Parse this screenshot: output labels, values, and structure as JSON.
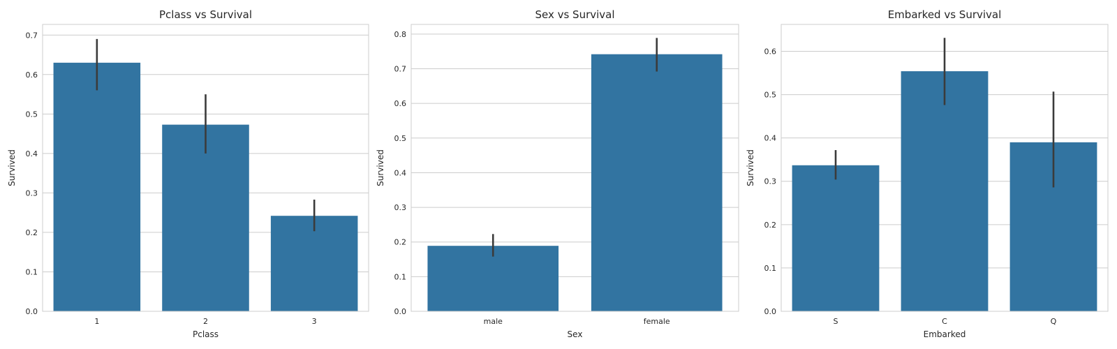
{
  "figure": {
    "bar_color": "#3274a1",
    "error_color": "#3b3b3b",
    "grid_color": "#cccccc"
  },
  "chart_data": [
    {
      "type": "bar",
      "title": "Pclass vs Survival",
      "xlabel": "Pclass",
      "ylabel": "Survived",
      "categories": [
        "1",
        "2",
        "3"
      ],
      "values": [
        0.63,
        0.473,
        0.242
      ],
      "ci_low": [
        0.56,
        0.4,
        0.203
      ],
      "ci_high": [
        0.69,
        0.55,
        0.283
      ],
      "ylim": [
        0,
        0.727
      ],
      "yticks": [
        0.0,
        0.1,
        0.2,
        0.3,
        0.4,
        0.5,
        0.6,
        0.7
      ],
      "ytick_labels": [
        "0.0",
        "0.1",
        "0.2",
        "0.3",
        "0.4",
        "0.5",
        "0.6",
        "0.7"
      ],
      "grid": true
    },
    {
      "type": "bar",
      "title": "Sex vs Survival",
      "xlabel": "Sex",
      "ylabel": "Survived",
      "categories": [
        "male",
        "female"
      ],
      "values": [
        0.189,
        0.742
      ],
      "ci_low": [
        0.158,
        0.692
      ],
      "ci_high": [
        0.223,
        0.789
      ],
      "ylim": [
        0,
        0.828
      ],
      "yticks": [
        0.0,
        0.1,
        0.2,
        0.3,
        0.4,
        0.5,
        0.6,
        0.7,
        0.8
      ],
      "ytick_labels": [
        "0.0",
        "0.1",
        "0.2",
        "0.3",
        "0.4",
        "0.5",
        "0.6",
        "0.7",
        "0.8"
      ],
      "grid": true
    },
    {
      "type": "bar",
      "title": "Embarked vs Survival",
      "xlabel": "Embarked",
      "ylabel": "Survived",
      "categories": [
        "S",
        "C",
        "Q"
      ],
      "values": [
        0.337,
        0.554,
        0.39
      ],
      "ci_low": [
        0.304,
        0.476,
        0.286
      ],
      "ci_high": [
        0.372,
        0.631,
        0.507
      ],
      "ylim": [
        0,
        0.662
      ],
      "yticks": [
        0.0,
        0.1,
        0.2,
        0.3,
        0.4,
        0.5,
        0.6
      ],
      "ytick_labels": [
        "0.0",
        "0.1",
        "0.2",
        "0.3",
        "0.4",
        "0.5",
        "0.6"
      ],
      "grid": true
    }
  ]
}
